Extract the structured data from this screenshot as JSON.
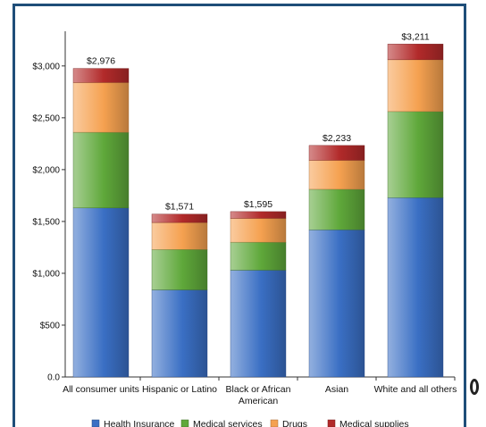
{
  "chart_data": {
    "type": "bar",
    "stacked": true,
    "categories": [
      "All consumer units",
      "Hispanic or Latino",
      "Black or African American",
      "Asian",
      "White and all others"
    ],
    "series": [
      {
        "name": "Health Insurance",
        "color": "#3a6fc4",
        "values": [
          1630,
          840,
          1030,
          1420,
          1730
        ]
      },
      {
        "name": "Medical services",
        "color": "#5fa83a",
        "values": [
          730,
          390,
          270,
          390,
          830
        ]
      },
      {
        "name": "Drugs",
        "color": "#f5a150",
        "values": [
          480,
          260,
          230,
          280,
          500
        ]
      },
      {
        "name": "Medical supplies",
        "color": "#b22a2a",
        "values": [
          136,
          81,
          65,
          143,
          151
        ]
      }
    ],
    "totals": [
      "$2,976",
      "$1,571",
      "$1,595",
      "$2,233",
      "$3,211"
    ],
    "y_ticks": [
      "0.0",
      "$500",
      "$1,000",
      "$1,500",
      "$2,000",
      "$2,500",
      "$3,000"
    ],
    "y_tick_values": [
      0,
      500,
      1000,
      1500,
      2000,
      2500,
      3000
    ],
    "ylim": [
      0,
      3300
    ],
    "legend_position": "bottom"
  }
}
